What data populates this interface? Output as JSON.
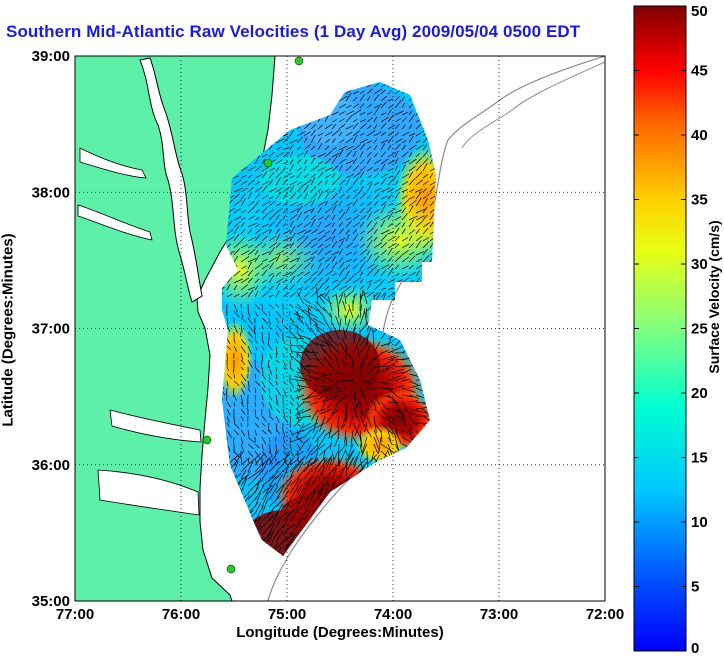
{
  "chart_data": {
    "type": "heatmap",
    "title": "Southern Mid-Atlantic Raw Velocities (1 Day Avg) 2009/05/04 0500 EDT",
    "xlabel": "Longitude (Degrees:Minutes)",
    "ylabel": "Latitude (Degrees:Minutes)",
    "x_ticks": [
      "77:00",
      "76:00",
      "75:00",
      "74:00",
      "73:00",
      "72:00"
    ],
    "y_ticks": [
      "39:00",
      "38:00",
      "37:00",
      "36:00",
      "35:00"
    ],
    "xlim": [
      -77,
      -72
    ],
    "ylim": [
      35,
      39
    ],
    "grid": true,
    "colorbar": {
      "label": "Surface Velocity (cm/s)",
      "min": 0,
      "max": 50,
      "ticks": [
        0,
        5,
        10,
        15,
        20,
        25,
        30,
        35,
        40,
        45,
        50
      ],
      "colormap": "jet"
    },
    "colors": {
      "land": "#5cf0a8",
      "title": "#1a1ae6",
      "coast": "#000000",
      "shelf_contour": "#8c8c8c",
      "station": "#22cc22",
      "vectors": "#000000"
    },
    "velocity_field": [
      {
        "lon": -74.3,
        "lat": 36.7,
        "speed": 50
      },
      {
        "lon": -74.0,
        "lat": 36.4,
        "speed": 48
      },
      {
        "lon": -74.6,
        "lat": 35.7,
        "speed": 47
      },
      {
        "lon": -75.0,
        "lat": 35.4,
        "speed": 48
      },
      {
        "lon": -74.7,
        "lat": 36.5,
        "speed": 35
      },
      {
        "lon": -73.7,
        "lat": 38.0,
        "speed": 34
      },
      {
        "lon": -73.9,
        "lat": 37.6,
        "speed": 27
      },
      {
        "lon": -75.4,
        "lat": 36.9,
        "speed": 26
      },
      {
        "lon": -75.2,
        "lat": 37.7,
        "speed": 22
      },
      {
        "lon": -74.4,
        "lat": 37.9,
        "speed": 16
      },
      {
        "lon": -74.6,
        "lat": 38.5,
        "speed": 10
      },
      {
        "lon": -74.0,
        "lat": 38.6,
        "speed": 12
      },
      {
        "lon": -74.5,
        "lat": 37.2,
        "speed": 13
      },
      {
        "lon": -75.2,
        "lat": 36.2,
        "speed": 9
      },
      {
        "lon": -74.8,
        "lat": 36.0,
        "speed": 14
      },
      {
        "lon": -75.1,
        "lat": 36.6,
        "speed": 14
      },
      {
        "lon": -74.2,
        "lat": 37.4,
        "speed": 15
      }
    ]
  }
}
